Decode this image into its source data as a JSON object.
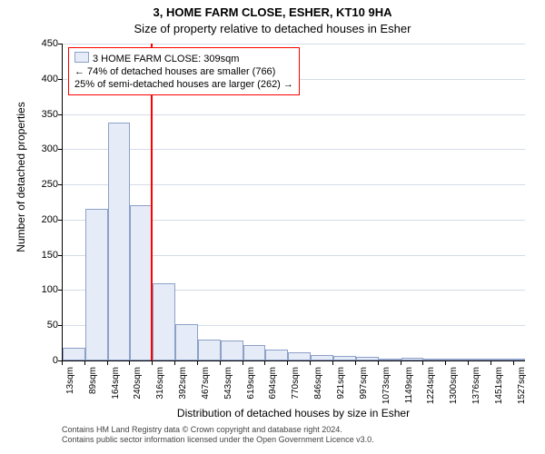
{
  "titles": {
    "line1": "3, HOME FARM CLOSE, ESHER, KT10 9HA",
    "line2": "Size of property relative to detached houses in Esher"
  },
  "axes": {
    "ylabel": "Number of detached properties",
    "xlabel": "Distribution of detached houses by size in Esher",
    "ylim": [
      0,
      450
    ],
    "ytick_step": 50,
    "x_tick_labels": [
      "13sqm",
      "89sqm",
      "164sqm",
      "240sqm",
      "316sqm",
      "392sqm",
      "467sqm",
      "543sqm",
      "619sqm",
      "694sqm",
      "770sqm",
      "846sqm",
      "921sqm",
      "997sqm",
      "1073sqm",
      "1149sqm",
      "1224sqm",
      "1300sqm",
      "1376sqm",
      "1451sqm",
      "1527sqm"
    ],
    "x_range": [
      13,
      1565
    ],
    "grid_color": "#d4dce8"
  },
  "chart": {
    "type": "histogram",
    "bar_fill": "#e6ecf7",
    "bar_border": "#8da0c8",
    "background_color": "#ffffff",
    "bars": [
      {
        "x0": 13,
        "x1": 89,
        "y": 18
      },
      {
        "x0": 89,
        "x1": 164,
        "y": 215
      },
      {
        "x0": 164,
        "x1": 240,
        "y": 338
      },
      {
        "x0": 240,
        "x1": 316,
        "y": 220
      },
      {
        "x0": 316,
        "x1": 392,
        "y": 110
      },
      {
        "x0": 392,
        "x1": 467,
        "y": 52
      },
      {
        "x0": 467,
        "x1": 543,
        "y": 30
      },
      {
        "x0": 543,
        "x1": 619,
        "y": 28
      },
      {
        "x0": 619,
        "x1": 694,
        "y": 22
      },
      {
        "x0": 694,
        "x1": 770,
        "y": 16
      },
      {
        "x0": 770,
        "x1": 846,
        "y": 12
      },
      {
        "x0": 846,
        "x1": 921,
        "y": 8
      },
      {
        "x0": 921,
        "x1": 997,
        "y": 7
      },
      {
        "x0": 997,
        "x1": 1073,
        "y": 5
      },
      {
        "x0": 1073,
        "x1": 1149,
        "y": 3
      },
      {
        "x0": 1149,
        "x1": 1224,
        "y": 4
      },
      {
        "x0": 1224,
        "x1": 1300,
        "y": 3
      },
      {
        "x0": 1300,
        "x1": 1376,
        "y": 2
      },
      {
        "x0": 1376,
        "x1": 1451,
        "y": 2
      },
      {
        "x0": 1451,
        "x1": 1527,
        "y": 2
      },
      {
        "x0": 1527,
        "x1": 1565,
        "y": 1
      }
    ]
  },
  "marker": {
    "x": 309,
    "color": "#ff0000"
  },
  "annotation_box": {
    "swatch_color": "#e6ecf7",
    "swatch_border": "#8da0c8",
    "border_color": "#ff0000",
    "lines": [
      "3 HOME FARM CLOSE: 309sqm",
      "← 74% of detached houses are smaller (766)",
      "25% of semi-detached houses are larger (262) →"
    ]
  },
  "footer": {
    "line1": "Contains HM Land Registry data © Crown copyright and database right 2024.",
    "line2": "Contains public sector information licensed under the Open Government Licence v3.0."
  }
}
